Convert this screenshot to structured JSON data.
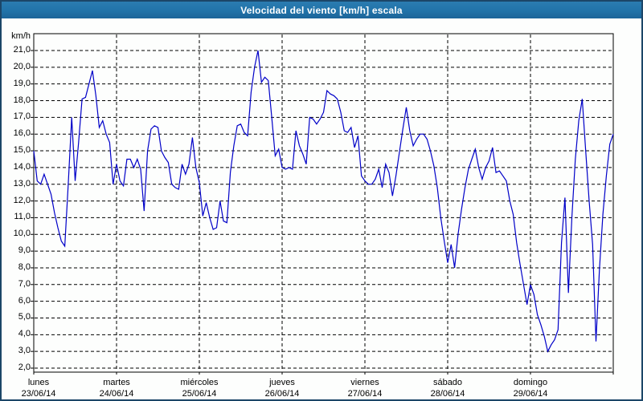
{
  "window": {
    "title": "Velocidad del viento [km/h] escala"
  },
  "axes": {
    "y_unit_label": "km/h",
    "y_tick_labels": [
      "21,0",
      "20,0",
      "19,0",
      "18,0",
      "17,0",
      "16,0",
      "15,0",
      "14,0",
      "13,0",
      "12,0",
      "11,0",
      "10,0",
      "9,0",
      "8,0",
      "7,0",
      "6,0",
      "5,0",
      "4,0",
      "3,0",
      "2,0"
    ],
    "x_day_labels": [
      {
        "name": "lunes",
        "date": "23/06/14"
      },
      {
        "name": "martes",
        "date": "24/06/14"
      },
      {
        "name": "miércoles",
        "date": "25/06/14"
      },
      {
        "name": "jueves",
        "date": "26/06/14"
      },
      {
        "name": "viernes",
        "date": "27/06/14"
      },
      {
        "name": "sábado",
        "date": "28/06/14"
      },
      {
        "name": "domingo",
        "date": "29/06/14"
      }
    ]
  },
  "colors": {
    "line": "#0000c8",
    "grid": "#000000",
    "frame": "#000000",
    "titlebar": "#2173a9",
    "window_border": "#1c4668",
    "background": "#fdfefd"
  },
  "chart_data": {
    "type": "line",
    "title": "Velocidad del viento [km/h] escala",
    "ylabel": "km/h",
    "ylim": [
      2,
      21
    ],
    "y_step": 1,
    "grid": "dashed",
    "points_per_day": 24,
    "days": [
      "lunes 23/06/14",
      "martes 24/06/14",
      "miércoles 25/06/14",
      "jueves 26/06/14",
      "viernes 27/06/14",
      "sábado 28/06/14",
      "domingo 29/06/14"
    ],
    "series": [
      {
        "name": "Velocidad del viento [km/h]",
        "values": [
          15.0,
          13.2,
          13.0,
          13.6,
          13.0,
          12.4,
          11.3,
          10.4,
          9.6,
          9.3,
          13.0,
          17.0,
          13.2,
          15.5,
          18.1,
          18.2,
          19.0,
          19.8,
          18.3,
          16.4,
          16.8,
          16.0,
          15.5,
          13.0,
          14.2,
          13.2,
          12.9,
          14.5,
          14.5,
          14.0,
          14.5,
          13.9,
          11.4,
          15.0,
          16.3,
          16.5,
          16.4,
          15.0,
          14.6,
          14.3,
          13.0,
          12.8,
          12.7,
          14.2,
          13.6,
          14.2,
          15.8,
          14.0,
          13.1,
          11.1,
          11.9,
          11.0,
          10.3,
          10.4,
          12.0,
          10.8,
          10.7,
          13.7,
          15.3,
          16.5,
          16.6,
          16.1,
          15.9,
          18.5,
          20.0,
          21.0,
          19.1,
          19.4,
          19.2,
          17.0,
          14.7,
          15.1,
          14.0,
          13.9,
          14.0,
          13.9,
          16.2,
          15.3,
          14.8,
          14.2,
          17.0,
          16.9,
          16.6,
          16.9,
          17.3,
          18.6,
          18.4,
          18.3,
          18.1,
          17.3,
          16.2,
          16.1,
          16.4,
          15.2,
          15.9,
          13.5,
          13.2,
          13.0,
          13.0,
          13.3,
          13.9,
          12.8,
          14.2,
          13.7,
          12.3,
          13.5,
          14.9,
          16.3,
          17.6,
          16.2,
          15.3,
          15.7,
          16.0,
          16.0,
          15.7,
          15.0,
          14.1,
          12.8,
          11.0,
          9.6,
          8.3,
          9.4,
          8.0,
          10.0,
          11.5,
          12.8,
          13.9,
          14.5,
          15.1,
          14.0,
          13.3,
          14.0,
          14.4,
          15.2,
          13.7,
          13.8,
          13.5,
          13.2,
          12.0,
          11.2,
          9.5,
          8.2,
          7.0,
          5.8,
          7.0,
          6.4,
          5.2,
          4.6,
          3.9,
          3.0,
          3.4,
          3.7,
          4.3,
          9.5,
          12.2,
          6.5,
          11.0,
          14.5,
          16.8,
          18.1,
          15.0,
          12.0,
          9.4,
          3.6,
          7.9,
          11.2,
          13.5,
          15.4,
          16.0
        ]
      }
    ]
  }
}
